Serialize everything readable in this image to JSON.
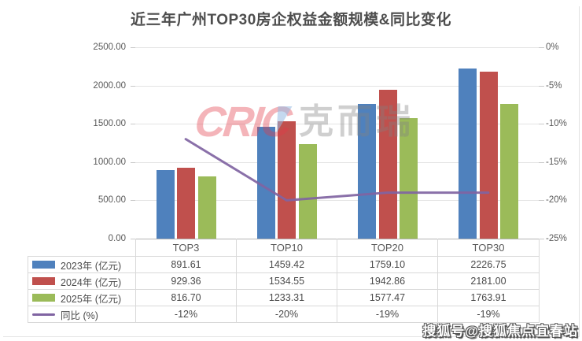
{
  "title": "近三年广州TOP30房企权益金额规模&同比变化",
  "watermark": {
    "logo": "CRIC",
    "logo_cn": "克而瑞"
  },
  "source_watermark": "搜狐号@搜狐焦点宜春站",
  "chart_data": {
    "type": "bar",
    "title": "近三年广州TOP30房企权益金额规模&同比变化",
    "categories": [
      "TOP3",
      "TOP10",
      "TOP20",
      "TOP30"
    ],
    "series": [
      {
        "name": "2023年 (亿元)",
        "type": "bar",
        "color": "#4F81BD",
        "axis": "left",
        "values": [
          891.61,
          1459.42,
          1759.1,
          2226.75
        ]
      },
      {
        "name": "2024年 (亿元)",
        "type": "bar",
        "color": "#C0504D",
        "axis": "left",
        "values": [
          929.36,
          1534.55,
          1942.86,
          2181.0
        ]
      },
      {
        "name": "2025年 (亿元)",
        "type": "bar",
        "color": "#9BBB59",
        "axis": "left",
        "values": [
          816.7,
          1233.31,
          1577.47,
          1763.91
        ]
      },
      {
        "name": "同比 (%)",
        "type": "line",
        "color": "#8064A2",
        "axis": "right",
        "values": [
          -12,
          -20,
          -19,
          -19
        ]
      }
    ],
    "left_axis": {
      "min": 0,
      "max": 2500,
      "step": 500,
      "tick_labels": [
        "2500.00",
        "2000.00",
        "1500.00",
        "1000.00",
        "500.00",
        "0.00"
      ]
    },
    "right_axis": {
      "min": -25,
      "max": 0,
      "step": 5,
      "tick_labels": [
        "0%",
        "-5%",
        "-10%",
        "-15%",
        "-20%",
        "-25%"
      ]
    },
    "grid": true,
    "legend_position": "table-left"
  }
}
